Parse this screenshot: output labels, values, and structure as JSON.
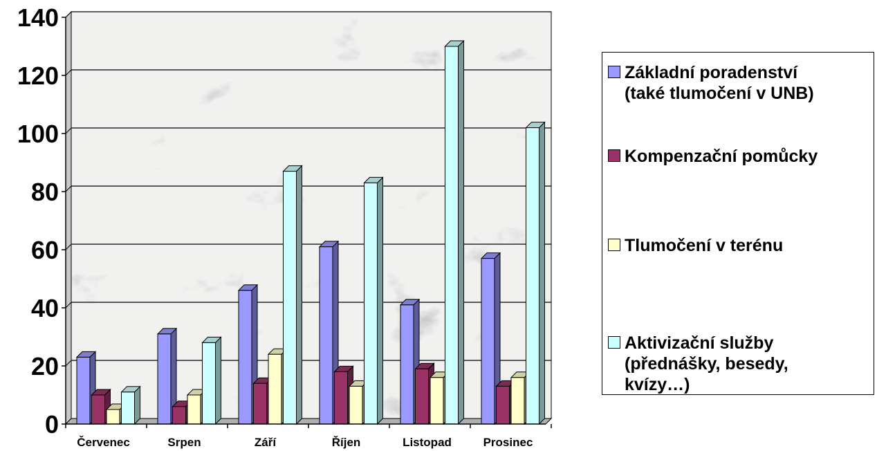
{
  "chart_data": {
    "type": "bar",
    "categories": [
      "Červenec",
      "Srpen",
      "Září",
      "Říjen",
      "Listopad",
      "Prosinec"
    ],
    "series": [
      {
        "name": "Základní poradenství\n(také tlumočení v UNB)",
        "color": "#9999ff",
        "values": [
          23,
          31,
          46,
          61,
          41,
          57
        ]
      },
      {
        "name": "Kompenzační pomůcky",
        "color": "#993366",
        "values": [
          10,
          6,
          14,
          18,
          19,
          13
        ]
      },
      {
        "name": "Tlumočení v terénu",
        "color": "#ffffcc",
        "values": [
          5,
          10,
          24,
          13,
          16,
          16
        ]
      },
      {
        "name": "Aktivizační služby\n(přednášky, besedy,\nkvízy…)",
        "color": "#ccffff",
        "values": [
          11,
          28,
          87,
          83,
          130,
          102
        ]
      }
    ],
    "ylim": [
      0,
      140
    ],
    "yticks": [
      "0",
      "20",
      "40",
      "60",
      "80",
      "100",
      "120",
      "140"
    ],
    "grid": true,
    "legend": "right",
    "background": "marble"
  }
}
